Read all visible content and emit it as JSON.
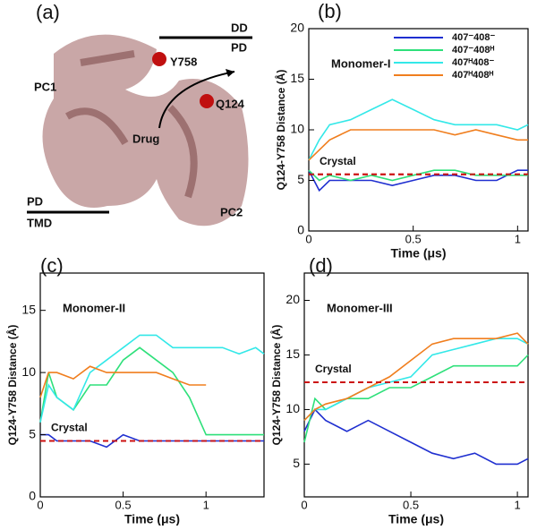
{
  "figure_a": {
    "label": "(a)",
    "dd": "DD",
    "pd_top": "PD",
    "pc1": "PC1",
    "y758": "Y758",
    "q124": "Q124",
    "drug": "Drug",
    "pd_bottom": "PD",
    "tmd": "TMD",
    "pc2": "PC2"
  },
  "chart_data": [
    {
      "type": "line",
      "label": "(b)",
      "title": "Monomer-I",
      "xlabel": "Time (μs)",
      "ylabel": "Q124-Y758 Distance (Å)",
      "x": [
        0,
        0.05,
        0.1,
        0.2,
        0.3,
        0.4,
        0.5,
        0.6,
        0.7,
        0.8,
        0.9,
        1.0,
        1.05
      ],
      "series": [
        {
          "name": "407⁻408⁻",
          "color": "#1f2fd0",
          "values": [
            6,
            4,
            5,
            5,
            5,
            4.5,
            5,
            5.5,
            5.5,
            5,
            5,
            6,
            6
          ]
        },
        {
          "name": "407⁻408ᴴ",
          "color": "#2ee07a",
          "values": [
            6,
            5,
            5.5,
            5,
            5.5,
            5,
            5.5,
            6,
            6,
            5.5,
            5.5,
            5.5,
            5.5
          ]
        },
        {
          "name": "407ᴴ408⁻",
          "color": "#33e8e8",
          "values": [
            7,
            9,
            10.5,
            11,
            12,
            13,
            12,
            11,
            10.5,
            10.5,
            10.5,
            10,
            10.5
          ]
        },
        {
          "name": "407ᴴ408ᴴ",
          "color": "#f07e1e",
          "values": [
            7,
            8,
            9,
            10,
            10,
            10,
            10,
            10,
            9.5,
            10,
            9.5,
            9,
            9
          ]
        }
      ],
      "reference": {
        "value": 5.6,
        "label": "Crystal",
        "color": "#cc1111"
      },
      "xlim": [
        0,
        1.05
      ],
      "ylim": [
        0,
        20
      ],
      "xticks": [
        0,
        0.5,
        1
      ],
      "yticks": [
        0,
        5,
        10,
        15,
        20
      ],
      "legend": "upper right"
    },
    {
      "type": "line",
      "label": "(c)",
      "title": "Monomer-II",
      "xlabel": "Time (μs)",
      "ylabel": "Q124-Y758 Distance (Å)",
      "x": [
        0,
        0.05,
        0.1,
        0.2,
        0.3,
        0.4,
        0.5,
        0.6,
        0.7,
        0.8,
        0.9,
        1.0,
        1.1,
        1.2,
        1.3,
        1.35
      ],
      "series": [
        {
          "name": "407⁻408⁻",
          "color": "#1f2fd0",
          "values": [
            5,
            5,
            4.5,
            4.5,
            4.5,
            4,
            5,
            4.5,
            4.5,
            4.5,
            4.5,
            4.5,
            4.5,
            4.5,
            4.5,
            4.5
          ]
        },
        {
          "name": "407⁻408ᴴ",
          "color": "#2ee07a",
          "values": [
            6,
            10,
            8,
            7,
            9,
            9,
            11,
            12,
            11,
            10,
            8,
            5,
            5,
            5,
            5,
            5
          ]
        },
        {
          "name": "407ᴴ408⁻",
          "color": "#33e8e8",
          "values": [
            6,
            9,
            8,
            7,
            10,
            11,
            12,
            13,
            13,
            12,
            12,
            12,
            12,
            11.5,
            12,
            11.5
          ]
        },
        {
          "name": "407ᴴ408ᴴ",
          "color": "#f07e1e",
          "values": [
            8,
            10,
            10,
            9.5,
            10.5,
            10,
            10,
            10,
            10,
            9.5,
            9,
            9,
            null,
            null,
            null,
            null
          ]
        }
      ],
      "reference": {
        "value": 4.5,
        "label": "Crystal",
        "color": "#cc1111"
      },
      "xlim": [
        0,
        1.35
      ],
      "ylim": [
        0,
        18
      ],
      "xticks": [
        0,
        0.5,
        1
      ],
      "yticks": [
        0,
        5,
        10,
        15
      ]
    },
    {
      "type": "line",
      "label": "(d)",
      "title": "Monomer-III",
      "xlabel": "Time (μs)",
      "ylabel": "Q124-Y758 Distance (Å)",
      "x": [
        0,
        0.05,
        0.1,
        0.2,
        0.3,
        0.4,
        0.5,
        0.6,
        0.7,
        0.8,
        0.9,
        1.0,
        1.05
      ],
      "series": [
        {
          "name": "407⁻408⁻",
          "color": "#1f2fd0",
          "values": [
            8,
            10,
            9,
            8,
            9,
            8,
            7,
            6,
            5.5,
            6,
            5,
            5,
            5.5
          ]
        },
        {
          "name": "407⁻408ᴴ",
          "color": "#2ee07a",
          "values": [
            7,
            11,
            10,
            11,
            11,
            12,
            12,
            13,
            14,
            14,
            14,
            14,
            15
          ]
        },
        {
          "name": "407ᴴ408⁻",
          "color": "#33e8e8",
          "values": [
            9,
            10,
            10,
            11,
            12,
            12.5,
            13,
            15,
            15.5,
            16,
            16.5,
            16.5,
            16
          ]
        },
        {
          "name": "407ᴴ408ᴴ",
          "color": "#f07e1e",
          "values": [
            9,
            10,
            10.5,
            11,
            12,
            13,
            14.5,
            16,
            16.5,
            16.5,
            16.5,
            17,
            16
          ]
        }
      ],
      "reference": {
        "value": 12.5,
        "label": "Crystal",
        "color": "#cc1111"
      },
      "xlim": [
        0,
        1.05
      ],
      "ylim": [
        2,
        22.5
      ],
      "xticks": [
        0,
        0.5,
        1
      ],
      "yticks": [
        5,
        10,
        15,
        20
      ]
    }
  ]
}
